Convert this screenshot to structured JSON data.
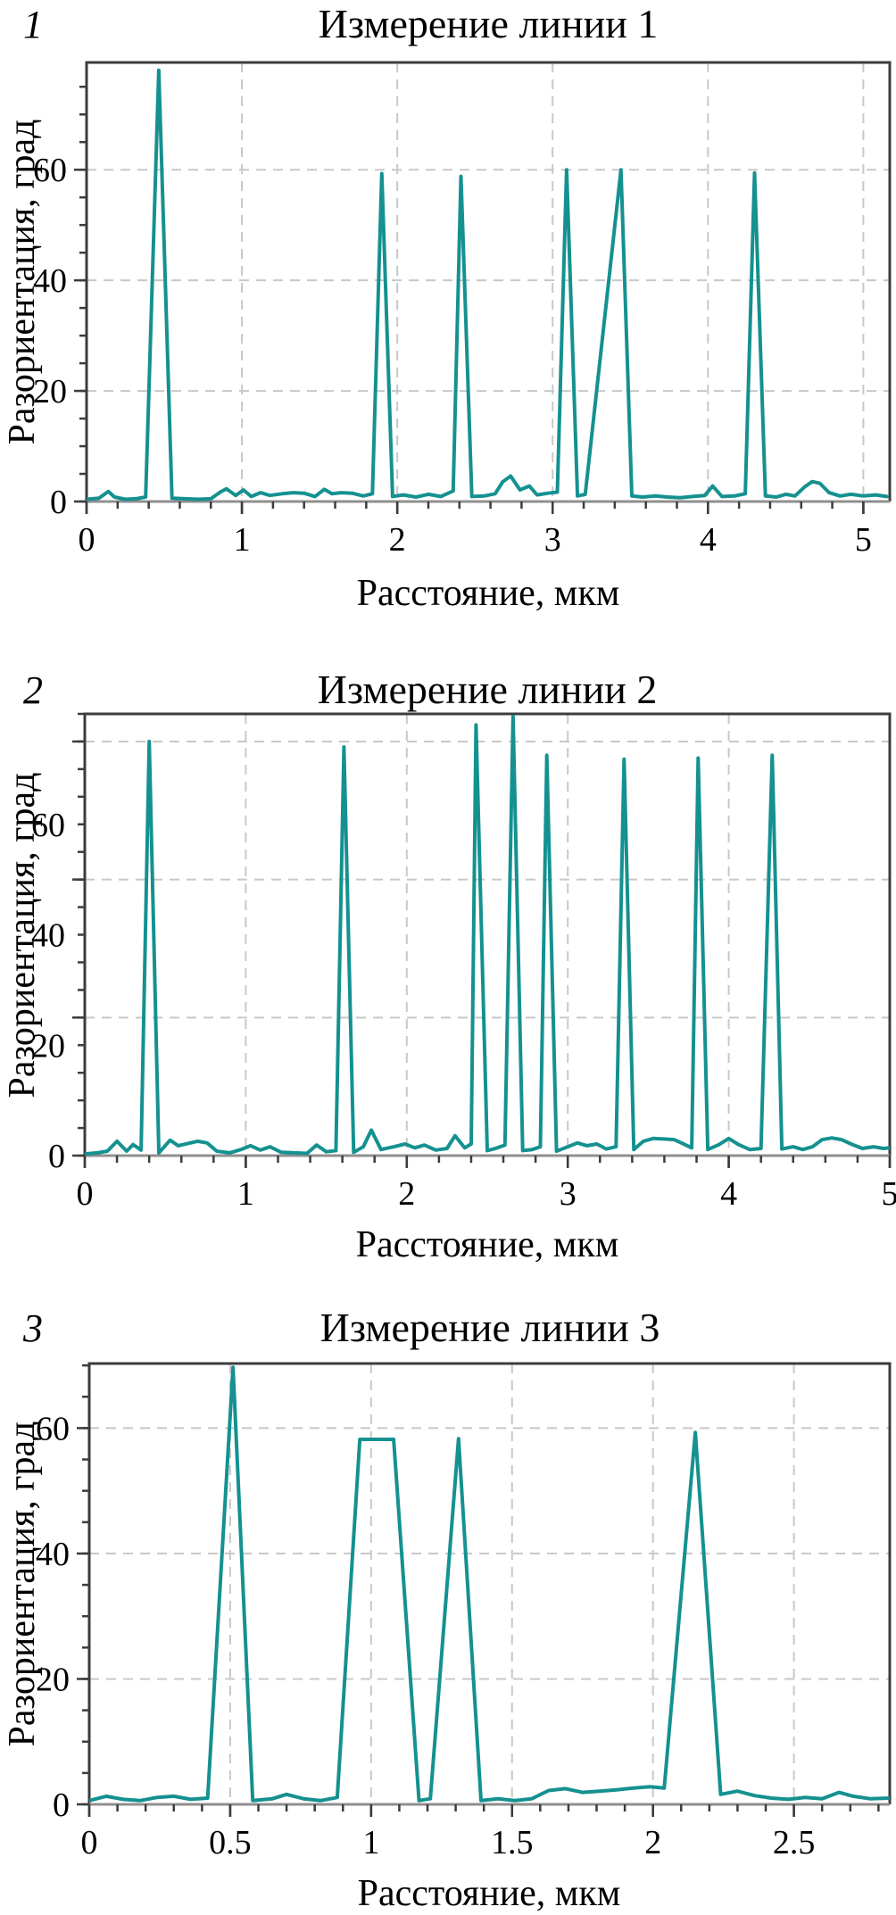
{
  "figure": {
    "background": "#ffffff",
    "line_color": "#149190",
    "grid_color": "#c8c8c8",
    "axis_color": "#3c3c3c",
    "baseline_color": "#8f8f8f",
    "text_color": "#000000"
  },
  "chart_data": [
    {
      "type": "line",
      "index_label": "1",
      "title": "Измерение линии 1",
      "xlabel": "Расстояние, мкм",
      "ylabel": "Разориентация, град",
      "xlim": [
        0,
        5.17
      ],
      "ylim": [
        0,
        79.4
      ],
      "x_ticks": [
        0,
        1,
        2,
        3,
        4,
        5
      ],
      "x_tick_labels": [
        "0",
        "1",
        "2",
        "3",
        "4",
        "5"
      ],
      "x_minor_step": 0.2,
      "x_grid": [
        1,
        2,
        3,
        4,
        5
      ],
      "y_ticks": [
        0,
        20,
        40,
        60
      ],
      "y_tick_labels": [
        "0",
        "20",
        "40",
        "60"
      ],
      "y_minor_step": 5,
      "y_grid": [
        20,
        40,
        60
      ],
      "grid_on": true,
      "legend": null,
      "x": [
        0,
        0.08,
        0.14,
        0.18,
        0.25,
        0.32,
        0.38,
        0.465,
        0.55,
        0.63,
        0.72,
        0.8,
        0.86,
        0.9,
        0.96,
        1.01,
        1.06,
        1.12,
        1.18,
        1.26,
        1.33,
        1.4,
        1.47,
        1.53,
        1.58,
        1.64,
        1.71,
        1.78,
        1.84,
        1.9,
        1.97,
        2.04,
        2.12,
        2.2,
        2.28,
        2.36,
        2.41,
        2.48,
        2.56,
        2.63,
        2.68,
        2.73,
        2.79,
        2.85,
        2.9,
        2.97,
        3.03,
        3.09,
        3.16,
        3.21,
        3.44,
        3.51,
        3.58,
        3.66,
        3.74,
        3.82,
        3.9,
        3.98,
        4.03,
        4.09,
        4.17,
        4.24,
        4.3,
        4.37,
        4.44,
        4.5,
        4.56,
        4.62,
        4.67,
        4.72,
        4.78,
        4.85,
        4.92,
        5.0,
        5.08,
        5.15
      ],
      "y": [
        0.4,
        0.6,
        1.8,
        0.8,
        0.4,
        0.5,
        0.8,
        78,
        0.6,
        0.5,
        0.4,
        0.5,
        1.7,
        2.3,
        1.1,
        2.1,
        0.9,
        1.6,
        1.1,
        1.4,
        1.6,
        1.5,
        0.9,
        2.2,
        1.4,
        1.6,
        1.5,
        1.0,
        1.4,
        59.3,
        0.9,
        1.2,
        0.8,
        1.3,
        0.9,
        1.9,
        58.8,
        0.9,
        1.0,
        1.4,
        3.6,
        4.6,
        2.1,
        2.8,
        1.2,
        1.5,
        1.7,
        60,
        1.0,
        1.3,
        60,
        1.0,
        0.8,
        1.0,
        0.8,
        0.7,
        0.9,
        1.1,
        2.8,
        0.9,
        1.0,
        1.4,
        59.4,
        1.0,
        0.8,
        1.3,
        1.0,
        2.6,
        3.6,
        3.3,
        1.6,
        1.0,
        1.3,
        1.0,
        1.2,
        0.9
      ]
    },
    {
      "type": "line",
      "index_label": "2",
      "title": "Измерение линии 2",
      "xlabel": "Расстояние, мкм",
      "ylabel": "Разориентация, град",
      "xlim": [
        0,
        5.0
      ],
      "ylim": [
        0,
        80
      ],
      "x_ticks": [
        0,
        1,
        2,
        3,
        4,
        5
      ],
      "x_tick_labels": [
        "0",
        "1",
        "2",
        "3",
        "4",
        "5"
      ],
      "x_minor_step": 0.2,
      "x_grid": [
        1,
        2,
        3,
        4,
        5
      ],
      "y_ticks": [
        0,
        20,
        40,
        60
      ],
      "y_tick_labels": [
        "0",
        "20",
        "40",
        "60"
      ],
      "y_minor_step": 5,
      "y_grid": [
        25,
        50,
        75
      ],
      "grid_on": true,
      "legend": null,
      "x": [
        0,
        0.08,
        0.14,
        0.2,
        0.26,
        0.3,
        0.35,
        0.4,
        0.46,
        0.53,
        0.58,
        0.64,
        0.7,
        0.76,
        0.82,
        0.9,
        0.97,
        1.03,
        1.09,
        1.15,
        1.22,
        1.3,
        1.38,
        1.44,
        1.5,
        1.56,
        1.61,
        1.67,
        1.73,
        1.78,
        1.84,
        1.92,
        1.99,
        2.05,
        2.11,
        2.18,
        2.25,
        2.3,
        2.36,
        2.4,
        2.43,
        2.5,
        2.55,
        2.61,
        2.66,
        2.72,
        2.78,
        2.83,
        2.87,
        2.93,
        3.0,
        3.06,
        3.12,
        3.18,
        3.24,
        3.3,
        3.35,
        3.41,
        3.47,
        3.53,
        3.6,
        3.66,
        3.72,
        3.77,
        3.81,
        3.87,
        3.94,
        4.0,
        4.06,
        4.13,
        4.2,
        4.27,
        4.33,
        4.4,
        4.46,
        4.52,
        4.58,
        4.64,
        4.7,
        4.76,
        4.83,
        4.9,
        4.96,
        5.0
      ],
      "y": [
        0.3,
        0.5,
        0.8,
        2.6,
        0.8,
        2.0,
        1.0,
        75,
        0.5,
        2.8,
        1.8,
        2.2,
        2.6,
        2.3,
        0.8,
        0.5,
        1.1,
        1.8,
        1.0,
        1.6,
        0.6,
        0.5,
        0.4,
        1.9,
        0.7,
        0.9,
        74,
        0.6,
        1.6,
        4.6,
        1.1,
        1.6,
        2.1,
        1.4,
        1.9,
        1.0,
        1.3,
        3.6,
        1.4,
        2.1,
        78,
        0.9,
        1.3,
        1.9,
        79.5,
        0.9,
        1.1,
        1.6,
        72.5,
        0.8,
        1.6,
        2.3,
        1.8,
        2.1,
        1.2,
        1.6,
        71.8,
        1.1,
        2.6,
        3.1,
        3.0,
        2.9,
        2.1,
        1.4,
        72,
        1.1,
        2.0,
        3.1,
        2.0,
        1.1,
        1.3,
        72.5,
        1.2,
        1.6,
        1.1,
        1.6,
        2.9,
        3.2,
        2.9,
        2.1,
        1.3,
        1.6,
        1.3,
        1.4
      ]
    },
    {
      "type": "line",
      "index_label": "3",
      "title": "Измерение линии 3",
      "xlabel": "Расстояние, мкм",
      "ylabel": "Разориентация, град",
      "xlim": [
        0,
        2.84
      ],
      "ylim": [
        0,
        70.3
      ],
      "x_ticks": [
        0,
        0.5,
        1,
        1.5,
        2,
        2.5
      ],
      "x_tick_labels": [
        "0",
        "0.5",
        "1",
        "1.5",
        "2",
        "2.5"
      ],
      "x_minor_step": 0.1,
      "x_grid": [
        0.5,
        1,
        1.5,
        2,
        2.5
      ],
      "y_ticks": [
        0,
        20,
        40,
        60
      ],
      "y_tick_labels": [
        "0",
        "20",
        "40",
        "60"
      ],
      "y_minor_step": 5,
      "y_grid": [
        20,
        40,
        60
      ],
      "grid_on": true,
      "legend": null,
      "x": [
        0,
        0.06,
        0.12,
        0.18,
        0.24,
        0.3,
        0.36,
        0.42,
        0.51,
        0.58,
        0.65,
        0.7,
        0.76,
        0.82,
        0.88,
        0.96,
        1.08,
        1.17,
        1.21,
        1.31,
        1.39,
        1.45,
        1.51,
        1.57,
        1.63,
        1.69,
        1.75,
        1.81,
        1.87,
        1.93,
        1.99,
        2.04,
        2.15,
        2.24,
        2.3,
        2.36,
        2.42,
        2.48,
        2.54,
        2.6,
        2.66,
        2.71,
        2.77,
        2.84
      ],
      "y": [
        0.6,
        1.3,
        0.8,
        0.6,
        1.1,
        1.3,
        0.8,
        1.0,
        69.7,
        0.6,
        0.9,
        1.6,
        0.9,
        0.6,
        1.1,
        58.2,
        58.2,
        0.6,
        0.9,
        58.3,
        0.6,
        0.9,
        0.6,
        0.9,
        2.2,
        2.5,
        1.9,
        2.1,
        2.3,
        2.6,
        2.8,
        2.6,
        59.3,
        1.6,
        2.1,
        1.4,
        1.0,
        0.8,
        1.1,
        0.9,
        1.9,
        1.3,
        0.9,
        1.0
      ]
    }
  ]
}
